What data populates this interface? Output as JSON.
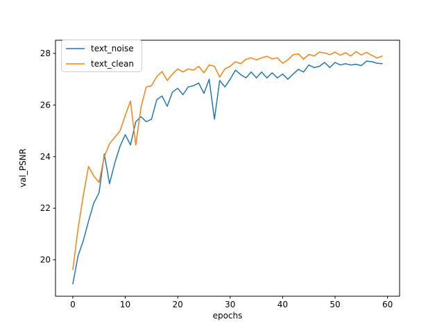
{
  "figure": {
    "background": "#ffffff",
    "plot_border_color": "#000000"
  },
  "chart_data": {
    "type": "line",
    "title": "",
    "xlabel": "epochs",
    "ylabel": "val_PSNR",
    "grid": false,
    "legend_position": "upper-left",
    "xlim": [
      -3.3,
      62.3
    ],
    "ylim": [
      18.59,
      28.51
    ],
    "x_ticks": [
      0,
      10,
      20,
      30,
      40,
      50,
      60
    ],
    "y_ticks": [
      20,
      22,
      24,
      26,
      28
    ],
    "x": [
      0,
      1,
      2,
      3,
      4,
      5,
      6,
      7,
      8,
      9,
      10,
      11,
      12,
      13,
      14,
      15,
      16,
      17,
      18,
      19,
      20,
      21,
      22,
      23,
      24,
      25,
      26,
      27,
      28,
      29,
      30,
      31,
      32,
      33,
      34,
      35,
      36,
      37,
      38,
      39,
      40,
      41,
      42,
      43,
      44,
      45,
      46,
      47,
      48,
      49,
      50,
      51,
      52,
      53,
      54,
      55,
      56,
      57,
      58,
      59
    ],
    "series": [
      {
        "name": "text_noise",
        "color": "#1f77b4",
        "values": [
          19.07,
          20.15,
          20.75,
          21.5,
          22.2,
          22.6,
          24.1,
          22.95,
          23.75,
          24.4,
          24.85,
          24.45,
          25.35,
          25.55,
          25.35,
          25.45,
          26.2,
          26.35,
          25.95,
          26.5,
          26.65,
          26.4,
          26.7,
          26.75,
          26.85,
          26.45,
          27.0,
          25.45,
          26.95,
          26.7,
          27.0,
          27.35,
          27.18,
          27.05,
          27.28,
          27.05,
          27.28,
          27.05,
          27.25,
          27.05,
          27.2,
          27.0,
          27.2,
          27.38,
          27.28,
          27.55,
          27.45,
          27.5,
          27.65,
          27.45,
          27.65,
          27.55,
          27.6,
          27.55,
          27.58,
          27.53,
          27.7,
          27.68,
          27.62,
          27.6
        ]
      },
      {
        "name": "text_clean",
        "color": "#ff7f0e",
        "values": [
          19.62,
          21.2,
          22.5,
          23.62,
          23.25,
          23.0,
          24.0,
          24.5,
          24.75,
          25.0,
          25.6,
          26.15,
          24.45,
          25.9,
          26.7,
          26.75,
          27.1,
          27.3,
          26.95,
          27.2,
          27.4,
          27.28,
          27.4,
          27.35,
          27.5,
          27.25,
          27.55,
          27.5,
          27.08,
          27.4,
          27.5,
          27.68,
          27.6,
          27.77,
          27.83,
          27.75,
          27.83,
          27.89,
          27.79,
          27.83,
          27.62,
          27.75,
          27.95,
          27.98,
          27.78,
          27.96,
          27.9,
          28.05,
          28.02,
          27.95,
          28.05,
          27.93,
          28.03,
          27.9,
          28.07,
          27.94,
          28.04,
          27.93,
          27.82,
          27.9
        ]
      }
    ]
  }
}
